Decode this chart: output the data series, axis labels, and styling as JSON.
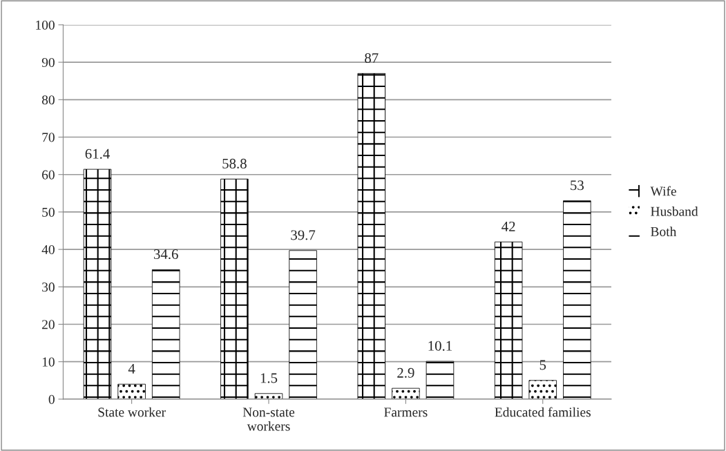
{
  "chart_data": {
    "type": "bar",
    "categories": [
      "State worker",
      "Non-state\nworkers",
      "Farmers",
      "Educated families"
    ],
    "series": [
      {
        "name": "Wife",
        "color": "#000000",
        "values": [
          61.4,
          58.8,
          87,
          42
        ]
      },
      {
        "name": "Husband",
        "color": "#000000",
        "values": [
          4,
          1.5,
          2.9,
          5
        ]
      },
      {
        "name": "Both",
        "color": "#000000",
        "values": [
          34.6,
          39.7,
          10.1,
          53
        ]
      }
    ],
    "ylim": [
      0,
      100
    ],
    "yticks": [
      0,
      10,
      20,
      30,
      40,
      50,
      60,
      70,
      80,
      90,
      100
    ],
    "grid": "y",
    "legend": "right",
    "data_labels": true
  }
}
